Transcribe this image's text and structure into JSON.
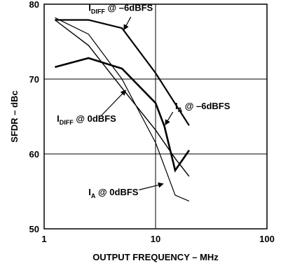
{
  "chart_data": {
    "type": "line",
    "title": "",
    "xlabel": "OUTPUT FREQUENCY – MHz",
    "ylabel": "SFDR – dBc",
    "x_scale": "log",
    "xlim": [
      1,
      100
    ],
    "ylim": [
      50,
      80
    ],
    "x_ticks": [
      1,
      10,
      100
    ],
    "x_tick_labels": [
      "1",
      "10",
      "100"
    ],
    "y_ticks": [
      50,
      60,
      70,
      80
    ],
    "y_tick_labels": [
      "50",
      "60",
      "70",
      "80"
    ],
    "grid": true,
    "legend": "none",
    "series": [
      {
        "key": "idiff_minus6",
        "label_main": "I",
        "label_sub": "DIFF",
        "label_rest": " @ –6dBFS",
        "stroke_width": 2.2,
        "points": [
          [
            1.25,
            77.9
          ],
          [
            2.5,
            77.9
          ],
          [
            5,
            76.8
          ],
          [
            10,
            70.8
          ],
          [
            20,
            63.8
          ]
        ]
      },
      {
        "key": "ia_minus6",
        "label_main": "I",
        "label_sub": "A",
        "label_rest": " @ –6dBFS",
        "stroke_width": 2.6,
        "points": [
          [
            1.25,
            71.6
          ],
          [
            2.5,
            72.8
          ],
          [
            5,
            71.4
          ],
          [
            10,
            66.8
          ],
          [
            12,
            63.7
          ],
          [
            15,
            57.8
          ],
          [
            20,
            60.5
          ]
        ]
      },
      {
        "key": "idiff_0",
        "label_main": "I",
        "label_sub": "DIFF",
        "label_rest": " @ 0dBFS",
        "stroke_width": 1.4,
        "points": [
          [
            1.25,
            77.9
          ],
          [
            2.5,
            74.5
          ],
          [
            5,
            68.8
          ],
          [
            10,
            63.2
          ],
          [
            15,
            59.4
          ],
          [
            20,
            57.0
          ]
        ]
      },
      {
        "key": "ia_0",
        "label_main": "I",
        "label_sub": "A",
        "label_rest": " @ 0dBFS",
        "stroke_width": 1.2,
        "points": [
          [
            1.25,
            78.2
          ],
          [
            2.5,
            76.0
          ],
          [
            5,
            70.0
          ],
          [
            10,
            61.5
          ],
          [
            15,
            54.5
          ],
          [
            20,
            53.7
          ]
        ]
      }
    ],
    "annotations": [
      {
        "series_key": "idiff_minus6",
        "text_x": 2.5,
        "text_y": 79.1,
        "arrow_from": [
          6.0,
          78.3
        ],
        "arrow_to": [
          5.2,
          76.6
        ]
      },
      {
        "series_key": "ia_minus6",
        "text_x": 15.0,
        "text_y": 66.0,
        "arrow_from": [
          14.3,
          65.6
        ],
        "arrow_to": [
          12.2,
          63.9
        ]
      },
      {
        "series_key": "idiff_0",
        "text_x": 1.3,
        "text_y": 64.3,
        "arrow_from": [
          3.2,
          65.0
        ],
        "arrow_to": [
          5.4,
          68.5
        ]
      },
      {
        "series_key": "ia_0",
        "text_x": 2.5,
        "text_y": 54.5,
        "arrow_from": [
          7.1,
          55.2
        ],
        "arrow_to": [
          11.7,
          56.0
        ]
      }
    ]
  }
}
